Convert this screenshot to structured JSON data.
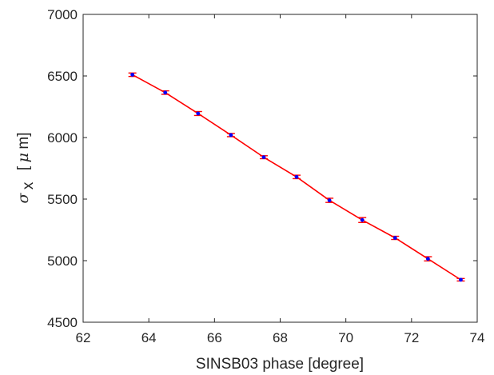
{
  "chart_data": {
    "type": "line",
    "title": "",
    "xlabel": "SINSB03 phase [degree]",
    "ylabel": {
      "symbol": "σ",
      "subscript": "x",
      "unit_open": "[",
      "unit_mu": "μ",
      "unit_rest": "m]"
    },
    "xlim": [
      62,
      74
    ],
    "ylim": [
      4500,
      7000
    ],
    "xticks": [
      62,
      64,
      66,
      68,
      70,
      72,
      74
    ],
    "yticks": [
      4500,
      5000,
      5500,
      6000,
      6500,
      7000
    ],
    "grid": false,
    "legend": "none",
    "series": [
      {
        "line_color": "#ff0000",
        "marker_color": "#0000ff",
        "errorbar_color": "#ff0000",
        "x": [
          63.5,
          64.5,
          65.5,
          66.5,
          67.5,
          68.5,
          69.5,
          70.5,
          71.5,
          72.5,
          73.5
        ],
        "y": [
          6510,
          6365,
          6195,
          6020,
          5840,
          5680,
          5490,
          5330,
          5185,
          5015,
          4845
        ],
        "yerr": [
          14,
          14,
          16,
          13,
          12,
          14,
          17,
          20,
          13,
          17,
          10
        ]
      }
    ]
  }
}
